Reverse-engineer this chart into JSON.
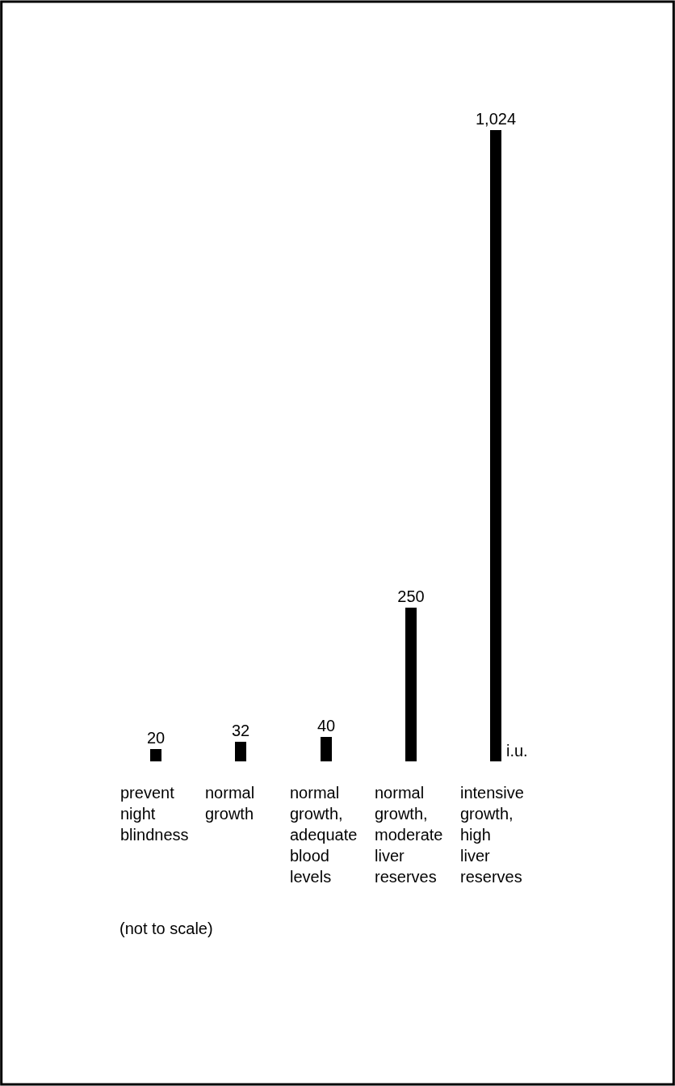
{
  "chart_data": {
    "type": "bar",
    "categories": [
      "prevent night blindness",
      "normal growth",
      "normal growth, adequate blood levels",
      "normal growth, moderate liver reserves",
      "intensive growth, high liver reserves"
    ],
    "values": [
      20,
      32,
      40,
      250,
      1024
    ],
    "value_labels": [
      "20",
      "32",
      "40",
      "250",
      "1,024"
    ],
    "color": "#000000",
    "annotations": [
      "i.u.",
      "(not to scale)"
    ],
    "legend": false
  }
}
